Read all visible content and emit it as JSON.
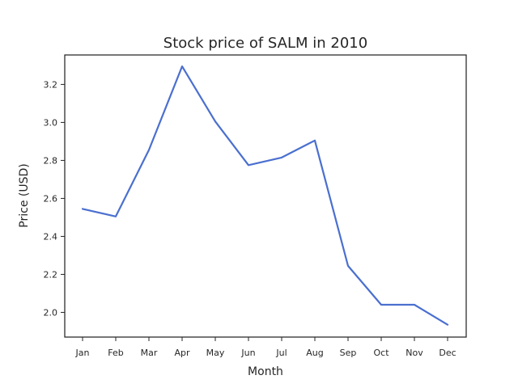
{
  "chart_data": {
    "type": "line",
    "title": "Stock price of SALM in 2010",
    "xlabel": "Month",
    "ylabel": "Price (USD)",
    "categories": [
      "Jan",
      "Feb",
      "Mar",
      "Apr",
      "May",
      "Jun",
      "Jul",
      "Aug",
      "Sep",
      "Oct",
      "Nov",
      "Dec"
    ],
    "series": [
      {
        "color": "#4a6fcf",
        "values": [
          2.545,
          2.505,
          2.855,
          3.295,
          3.005,
          2.775,
          2.815,
          2.905,
          2.245,
          2.04,
          2.04,
          1.935
        ]
      }
    ],
    "ylim": [
      1.87,
      3.355
    ],
    "yticks": [
      2.0,
      2.2,
      2.4,
      2.6,
      2.8,
      3.0,
      3.2
    ],
    "ytick_labels": [
      "2.0",
      "2.2",
      "2.4",
      "2.6",
      "2.8",
      "3.0",
      "3.2"
    ],
    "grid": false,
    "legend": "none"
  }
}
